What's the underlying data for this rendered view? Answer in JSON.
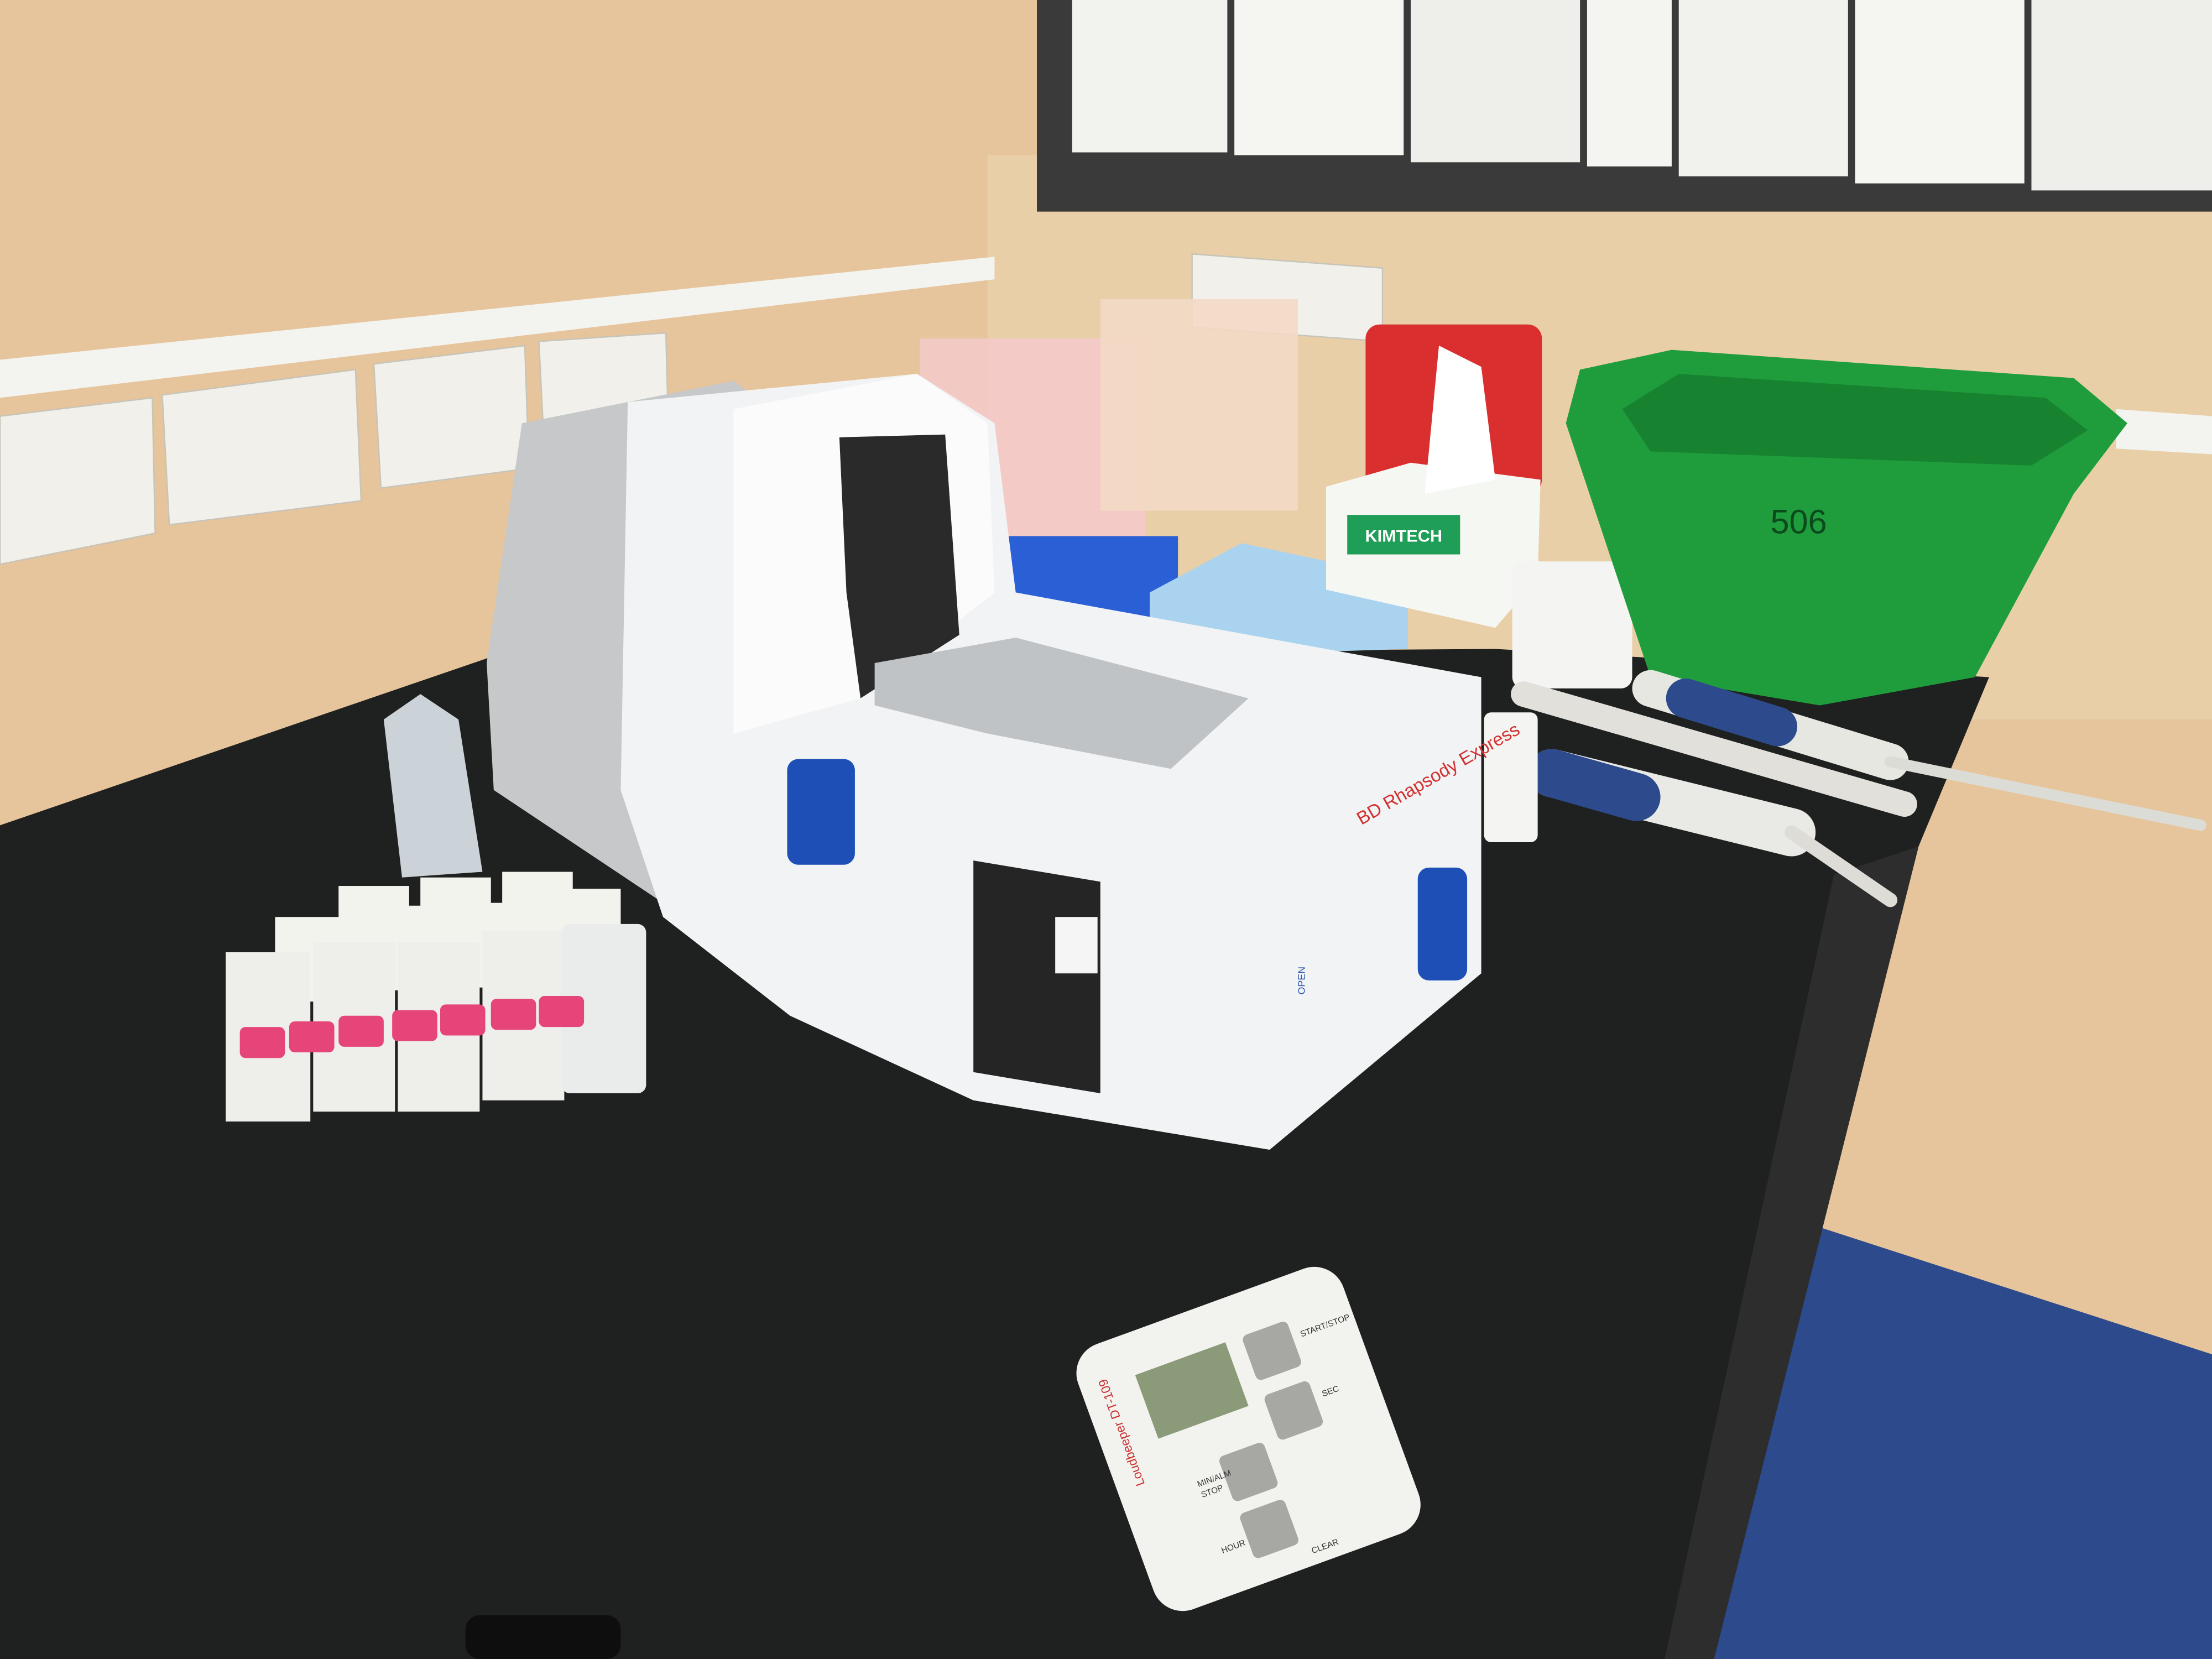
{
  "labels": {
    "instrument_brand": "BD Rhapsody Express",
    "instrument_open": "OPEN",
    "tissue_box": "KIMTECH",
    "tub_label": "506",
    "timer_model": "Loudbeeper DT-109",
    "timer_buttons": [
      "HOUR",
      "MIN/ALM",
      "STOP",
      "SEC",
      "START/STOP",
      "CLEAR"
    ]
  }
}
